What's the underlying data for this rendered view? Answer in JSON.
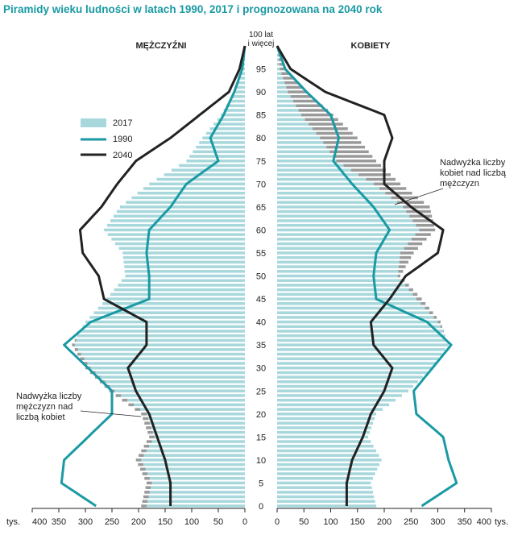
{
  "title": "Piramidy wieku ludności w latach 1990, 2017 i prognozowana na 2040 rok",
  "colors": {
    "bar_2017": "#a8d8dc",
    "excess": "#9a9a9a",
    "line_1990": "#1a9aa4",
    "line_2040": "#222222",
    "title": "#1a9aa4"
  },
  "chart_data": {
    "type": "population-pyramid",
    "left_label": "MĘŻCZYŹNI",
    "right_label": "KOBIETY",
    "top_age_label": [
      "100 lat",
      "i więcej"
    ],
    "age_ticks": [
      "0",
      "5",
      "10",
      "15",
      "20",
      "25",
      "30",
      "35",
      "40",
      "45",
      "50",
      "55",
      "60",
      "65",
      "70",
      "75",
      "80",
      "85",
      "90",
      "95"
    ],
    "unit_left": "tys.",
    "unit_right": "tys.",
    "x_ticks_left": [
      "400",
      "350",
      "300",
      "250",
      "200",
      "150",
      "100",
      "50",
      "0"
    ],
    "x_ticks_right": [
      "0",
      "50",
      "100",
      "150",
      "200",
      "250",
      "300",
      "350",
      "400"
    ],
    "xlim": [
      0,
      400
    ],
    "age_range": [
      0,
      100
    ],
    "legend": [
      {
        "name": "2017",
        "kind": "bar"
      },
      {
        "name": "1990",
        "kind": "line"
      },
      {
        "name": "2040",
        "kind": "line"
      }
    ],
    "annotations": [
      {
        "text": [
          "Nadwyżka liczby",
          "kobiet nad liczbą",
          "mężczyzn"
        ],
        "side": "right",
        "age": 70
      },
      {
        "text": [
          "Nadwyżka liczby",
          "mężczyzn nad",
          "liczbą kobiet"
        ],
        "side": "left",
        "age": 20
      }
    ],
    "series": [
      {
        "name": "2017",
        "ages": [
          0,
          5,
          10,
          15,
          20,
          25,
          30,
          35,
          40,
          45,
          50,
          55,
          60,
          65,
          70,
          75,
          80,
          85,
          90,
          95,
          100
        ],
        "male": [
          195,
          185,
          205,
          180,
          195,
          255,
          300,
          325,
          300,
          260,
          225,
          230,
          265,
          235,
          180,
          110,
          80,
          45,
          20,
          5,
          0
        ],
        "female": [
          185,
          175,
          195,
          170,
          185,
          245,
          290,
          320,
          305,
          270,
          230,
          255,
          295,
          285,
          230,
          185,
          150,
          105,
          55,
          15,
          0
        ]
      },
      {
        "name": "1990",
        "ages": [
          0,
          5,
          10,
          15,
          20,
          25,
          30,
          35,
          40,
          45,
          50,
          55,
          60,
          65,
          70,
          75,
          80,
          85,
          90,
          95,
          100
        ],
        "male": [
          280,
          345,
          340,
          295,
          250,
          250,
          295,
          340,
          290,
          180,
          180,
          185,
          180,
          140,
          110,
          50,
          65,
          40,
          20,
          5,
          0
        ],
        "female": [
          270,
          335,
          320,
          310,
          260,
          255,
          290,
          325,
          280,
          185,
          180,
          185,
          210,
          180,
          140,
          105,
          115,
          100,
          55,
          15,
          0
        ]
      },
      {
        "name": "2040",
        "ages": [
          0,
          5,
          10,
          15,
          20,
          25,
          30,
          35,
          40,
          45,
          50,
          55,
          60,
          65,
          70,
          75,
          80,
          85,
          90,
          95,
          100
        ],
        "male": [
          140,
          140,
          150,
          165,
          180,
          205,
          220,
          185,
          185,
          265,
          275,
          305,
          310,
          270,
          240,
          205,
          140,
          85,
          30,
          10,
          0
        ],
        "female": [
          130,
          130,
          140,
          160,
          175,
          200,
          215,
          180,
          175,
          210,
          240,
          300,
          310,
          250,
          200,
          200,
          215,
          200,
          90,
          25,
          0
        ]
      }
    ]
  }
}
